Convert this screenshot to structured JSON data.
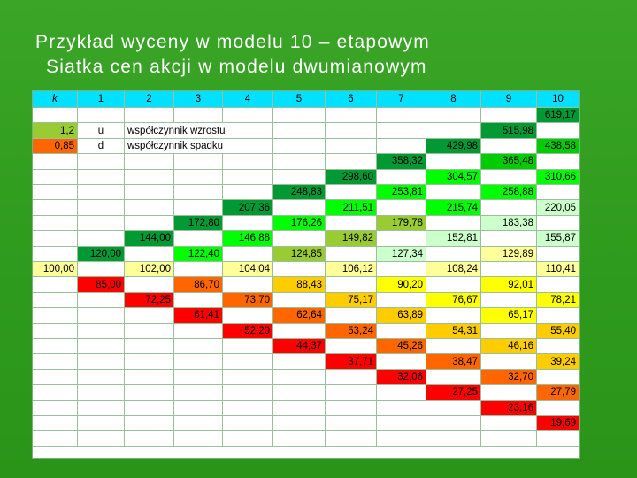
{
  "title": {
    "line1": "Przykład wyceny w modelu 10 – etapowym",
    "line2": "Siatka cen akcji w modelu dwumianowym"
  },
  "colors": {
    "header": "#00e0ff",
    "light_green": "#99cc33",
    "orange": "#ff6600",
    "dark_green": "#009933",
    "green": "#00cc00",
    "bright_green": "#00ff00",
    "pale_green": "#ccffcc",
    "pale_yellow": "#ffff99",
    "yellow": "#ffff00",
    "gold": "#ffcc00",
    "red": "#ff0000"
  },
  "table": {
    "headers": [
      "k",
      "1",
      "2",
      "3",
      "4",
      "5",
      "6",
      "7",
      "8",
      "9",
      "10"
    ],
    "params": {
      "u_value": "1,2",
      "u_symbol": "u",
      "u_label": "współczynnik wzrostu",
      "d_value": "0,85",
      "d_symbol": "d",
      "d_label": "współczynnik spadku"
    },
    "cells": [
      {
        "row": 1,
        "col": 10,
        "text": "619,17",
        "color": "#009933"
      },
      {
        "row": 2,
        "col": 9,
        "text": "515,98",
        "color": "#009933"
      },
      {
        "row": 3,
        "col": 8,
        "text": "429,98",
        "color": "#009933"
      },
      {
        "row": 3,
        "col": 10,
        "text": "438,58",
        "color": "#00cc00"
      },
      {
        "row": 4,
        "col": 7,
        "text": "358,32",
        "color": "#009933"
      },
      {
        "row": 4,
        "col": 9,
        "text": "365,48",
        "color": "#00cc00"
      },
      {
        "row": 5,
        "col": 6,
        "text": "298,60",
        "color": "#009933"
      },
      {
        "row": 5,
        "col": 8,
        "text": "304,57",
        "color": "#00ff00"
      },
      {
        "row": 5,
        "col": 10,
        "text": "310,66",
        "color": "#00ff00"
      },
      {
        "row": 6,
        "col": 5,
        "text": "248,83",
        "color": "#009933"
      },
      {
        "row": 6,
        "col": 7,
        "text": "253,81",
        "color": "#00ff00"
      },
      {
        "row": 6,
        "col": 9,
        "text": "258,88",
        "color": "#00ff00"
      },
      {
        "row": 7,
        "col": 4,
        "text": "207,36",
        "color": "#009933"
      },
      {
        "row": 7,
        "col": 6,
        "text": "211,51",
        "color": "#00ff00"
      },
      {
        "row": 7,
        "col": 8,
        "text": "215,74",
        "color": "#00ff00"
      },
      {
        "row": 7,
        "col": 10,
        "text": "220,05",
        "color": "#ccffcc"
      },
      {
        "row": 8,
        "col": 3,
        "text": "172,80",
        "color": "#009933"
      },
      {
        "row": 8,
        "col": 5,
        "text": "176,26",
        "color": "#00ff00"
      },
      {
        "row": 8,
        "col": 7,
        "text": "179,78",
        "color": "#99cc33"
      },
      {
        "row": 8,
        "col": 9,
        "text": "183,38",
        "color": "#ccffcc"
      },
      {
        "row": 9,
        "col": 2,
        "text": "144,00",
        "color": "#009933"
      },
      {
        "row": 9,
        "col": 4,
        "text": "146,88",
        "color": "#00ff00"
      },
      {
        "row": 9,
        "col": 6,
        "text": "149,82",
        "color": "#99cc33"
      },
      {
        "row": 9,
        "col": 8,
        "text": "152,81",
        "color": "#ccffcc"
      },
      {
        "row": 9,
        "col": 10,
        "text": "155,87",
        "color": "#ccffcc"
      },
      {
        "row": 10,
        "col": 1,
        "text": "120,00",
        "color": "#009933"
      },
      {
        "row": 10,
        "col": 3,
        "text": "122,40",
        "color": "#00ff00"
      },
      {
        "row": 10,
        "col": 5,
        "text": "124,85",
        "color": "#99cc33"
      },
      {
        "row": 10,
        "col": 7,
        "text": "127,34",
        "color": "#ccffcc"
      },
      {
        "row": 10,
        "col": 9,
        "text": "129,89",
        "color": "#ffff99"
      },
      {
        "row": 11,
        "col": 0,
        "text": "100,00",
        "color": "#ffff99"
      },
      {
        "row": 11,
        "col": 2,
        "text": "102,00",
        "color": "#ffff99"
      },
      {
        "row": 11,
        "col": 4,
        "text": "104,04",
        "color": "#ffff99"
      },
      {
        "row": 11,
        "col": 6,
        "text": "106,12",
        "color": "#ffff99"
      },
      {
        "row": 11,
        "col": 8,
        "text": "108,24",
        "color": "#ffff99"
      },
      {
        "row": 11,
        "col": 10,
        "text": "110,41",
        "color": "#ffff99"
      },
      {
        "row": 12,
        "col": 1,
        "text": "85,00",
        "color": "#ff0000"
      },
      {
        "row": 12,
        "col": 3,
        "text": "86,70",
        "color": "#ff6600"
      },
      {
        "row": 12,
        "col": 5,
        "text": "88,43",
        "color": "#ffcc00"
      },
      {
        "row": 12,
        "col": 7,
        "text": "90,20",
        "color": "#ffff00"
      },
      {
        "row": 12,
        "col": 9,
        "text": "92,01",
        "color": "#ffff00"
      },
      {
        "row": 13,
        "col": 2,
        "text": "72,25",
        "color": "#ff0000"
      },
      {
        "row": 13,
        "col": 4,
        "text": "73,70",
        "color": "#ff6600"
      },
      {
        "row": 13,
        "col": 6,
        "text": "75,17",
        "color": "#ffcc00"
      },
      {
        "row": 13,
        "col": 8,
        "text": "76,67",
        "color": "#ffff00"
      },
      {
        "row": 13,
        "col": 10,
        "text": "78,21",
        "color": "#ffff00"
      },
      {
        "row": 14,
        "col": 3,
        "text": "61,41",
        "color": "#ff0000"
      },
      {
        "row": 14,
        "col": 5,
        "text": "62,64",
        "color": "#ff6600"
      },
      {
        "row": 14,
        "col": 7,
        "text": "63,89",
        "color": "#ffcc00"
      },
      {
        "row": 14,
        "col": 9,
        "text": "65,17",
        "color": "#ffff00"
      },
      {
        "row": 15,
        "col": 4,
        "text": "52,20",
        "color": "#ff0000"
      },
      {
        "row": 15,
        "col": 6,
        "text": "53,24",
        "color": "#ff6600"
      },
      {
        "row": 15,
        "col": 8,
        "text": "54,31",
        "color": "#ffcc00"
      },
      {
        "row": 15,
        "col": 10,
        "text": "55,40",
        "color": "#ffcc00"
      },
      {
        "row": 16,
        "col": 5,
        "text": "44,37",
        "color": "#ff0000"
      },
      {
        "row": 16,
        "col": 7,
        "text": "45,26",
        "color": "#ff6600"
      },
      {
        "row": 16,
        "col": 9,
        "text": "46,16",
        "color": "#ffcc00"
      },
      {
        "row": 17,
        "col": 6,
        "text": "37,71",
        "color": "#ff0000"
      },
      {
        "row": 17,
        "col": 8,
        "text": "38,47",
        "color": "#ff6600"
      },
      {
        "row": 17,
        "col": 10,
        "text": "39,24",
        "color": "#ffcc00"
      },
      {
        "row": 18,
        "col": 7,
        "text": "32,06",
        "color": "#ff0000"
      },
      {
        "row": 18,
        "col": 9,
        "text": "32,70",
        "color": "#ff6600"
      },
      {
        "row": 19,
        "col": 8,
        "text": "27,25",
        "color": "#ff0000"
      },
      {
        "row": 19,
        "col": 10,
        "text": "27,79",
        "color": "#ff6600"
      },
      {
        "row": 20,
        "col": 9,
        "text": "23,16",
        "color": "#ff0000"
      },
      {
        "row": 21,
        "col": 10,
        "text": "19,69",
        "color": "#ff0000"
      }
    ]
  }
}
